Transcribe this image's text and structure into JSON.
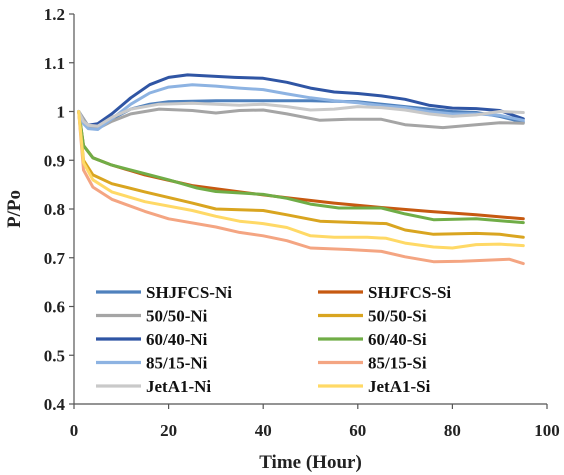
{
  "chart_data": {
    "type": "line",
    "title": "",
    "xlabel": "Time (Hour)",
    "ylabel": "P/Po",
    "xlim": [
      0,
      100
    ],
    "ylim": [
      0.4,
      1.2
    ],
    "xticks": [
      "0",
      "20",
      "40",
      "60",
      "80",
      "100"
    ],
    "yticks": [
      "0.4",
      "0.5",
      "0.6",
      "0.7",
      "0.8",
      "0.9",
      "1",
      "1.1",
      "1.2"
    ],
    "xtick_values": [
      0,
      20,
      40,
      60,
      80,
      100
    ],
    "ytick_values": [
      0.4,
      0.5,
      0.6,
      0.7,
      0.8,
      0.9,
      1.0,
      1.1,
      1.2
    ],
    "grid": false,
    "legend_position": "lower-left, inside plot, two columns",
    "series": [
      {
        "name": "SHJFCS-Ni",
        "color": "#4f81bd",
        "points": [
          [
            1,
            1.0
          ],
          [
            3,
            0.97
          ],
          [
            5,
            0.965
          ],
          [
            8,
            0.985
          ],
          [
            12,
            1.005
          ],
          [
            16,
            1.015
          ],
          [
            20,
            1.02
          ],
          [
            30,
            1.022
          ],
          [
            40,
            1.022
          ],
          [
            50,
            1.022
          ],
          [
            60,
            1.02
          ],
          [
            70,
            1.01
          ],
          [
            80,
            1.0
          ],
          [
            85,
            0.998
          ],
          [
            90,
            0.99
          ],
          [
            95,
            0.978
          ]
        ]
      },
      {
        "name": "SHJFCS-Si",
        "color": "#c65911",
        "points": [
          [
            1,
            1.0
          ],
          [
            2,
            0.93
          ],
          [
            4,
            0.905
          ],
          [
            8,
            0.89
          ],
          [
            15,
            0.87
          ],
          [
            25,
            0.848
          ],
          [
            35,
            0.835
          ],
          [
            45,
            0.823
          ],
          [
            55,
            0.812
          ],
          [
            65,
            0.803
          ],
          [
            75,
            0.795
          ],
          [
            85,
            0.788
          ],
          [
            95,
            0.78
          ]
        ]
      },
      {
        "name": "50/50-Ni",
        "color": "#a5a5a5",
        "points": [
          [
            1,
            1.0
          ],
          [
            3,
            0.97
          ],
          [
            5,
            0.965
          ],
          [
            8,
            0.98
          ],
          [
            12,
            0.995
          ],
          [
            18,
            1.005
          ],
          [
            25,
            1.002
          ],
          [
            30,
            0.997
          ],
          [
            35,
            1.002
          ],
          [
            40,
            1.003
          ],
          [
            45,
            0.995
          ],
          [
            52,
            0.982
          ],
          [
            58,
            0.984
          ],
          [
            65,
            0.984
          ],
          [
            70,
            0.973
          ],
          [
            78,
            0.967
          ],
          [
            85,
            0.973
          ],
          [
            90,
            0.977
          ],
          [
            95,
            0.976
          ]
        ]
      },
      {
        "name": "50/50-Si",
        "color": "#d9a520",
        "points": [
          [
            1,
            1.0
          ],
          [
            2,
            0.9
          ],
          [
            4,
            0.87
          ],
          [
            8,
            0.852
          ],
          [
            15,
            0.835
          ],
          [
            25,
            0.812
          ],
          [
            30,
            0.8
          ],
          [
            40,
            0.797
          ],
          [
            45,
            0.788
          ],
          [
            52,
            0.775
          ],
          [
            60,
            0.772
          ],
          [
            66,
            0.77
          ],
          [
            70,
            0.757
          ],
          [
            76,
            0.748
          ],
          [
            85,
            0.75
          ],
          [
            90,
            0.748
          ],
          [
            95,
            0.742
          ]
        ]
      },
      {
        "name": "60/40-Ni",
        "color": "#2f55a4",
        "points": [
          [
            1,
            1.0
          ],
          [
            2,
            0.98
          ],
          [
            3,
            0.972
          ],
          [
            5,
            0.975
          ],
          [
            8,
            0.995
          ],
          [
            12,
            1.028
          ],
          [
            16,
            1.055
          ],
          [
            20,
            1.07
          ],
          [
            24,
            1.075
          ],
          [
            28,
            1.073
          ],
          [
            34,
            1.07
          ],
          [
            40,
            1.068
          ],
          [
            45,
            1.06
          ],
          [
            50,
            1.048
          ],
          [
            55,
            1.04
          ],
          [
            60,
            1.037
          ],
          [
            65,
            1.032
          ],
          [
            70,
            1.025
          ],
          [
            75,
            1.013
          ],
          [
            80,
            1.007
          ],
          [
            85,
            1.006
          ],
          [
            90,
            1.002
          ],
          [
            95,
            0.985
          ]
        ]
      },
      {
        "name": "60/40-Si",
        "color": "#70ad47",
        "points": [
          [
            1,
            1.0
          ],
          [
            2,
            0.93
          ],
          [
            4,
            0.905
          ],
          [
            8,
            0.89
          ],
          [
            14,
            0.875
          ],
          [
            20,
            0.86
          ],
          [
            26,
            0.843
          ],
          [
            30,
            0.836
          ],
          [
            40,
            0.83
          ],
          [
            45,
            0.822
          ],
          [
            50,
            0.81
          ],
          [
            56,
            0.802
          ],
          [
            65,
            0.802
          ],
          [
            70,
            0.79
          ],
          [
            76,
            0.778
          ],
          [
            85,
            0.78
          ],
          [
            95,
            0.772
          ]
        ]
      },
      {
        "name": "85/15-Ni",
        "color": "#8db3e2",
        "points": [
          [
            1,
            1.0
          ],
          [
            2,
            0.975
          ],
          [
            3,
            0.965
          ],
          [
            5,
            0.963
          ],
          [
            8,
            0.985
          ],
          [
            12,
            1.015
          ],
          [
            16,
            1.038
          ],
          [
            20,
            1.05
          ],
          [
            25,
            1.055
          ],
          [
            30,
            1.052
          ],
          [
            35,
            1.048
          ],
          [
            40,
            1.045
          ],
          [
            45,
            1.036
          ],
          [
            50,
            1.028
          ],
          [
            55,
            1.022
          ],
          [
            60,
            1.018
          ],
          [
            65,
            1.012
          ],
          [
            70,
            1.008
          ],
          [
            75,
            1.0
          ],
          [
            80,
            0.995
          ],
          [
            85,
            0.995
          ],
          [
            90,
            0.992
          ],
          [
            95,
            0.982
          ]
        ]
      },
      {
        "name": "85/15-Si",
        "color": "#f4a582",
        "points": [
          [
            1,
            1.0
          ],
          [
            2,
            0.88
          ],
          [
            4,
            0.845
          ],
          [
            8,
            0.82
          ],
          [
            15,
            0.795
          ],
          [
            20,
            0.78
          ],
          [
            30,
            0.763
          ],
          [
            35,
            0.752
          ],
          [
            40,
            0.745
          ],
          [
            45,
            0.735
          ],
          [
            50,
            0.72
          ],
          [
            58,
            0.717
          ],
          [
            65,
            0.713
          ],
          [
            70,
            0.702
          ],
          [
            76,
            0.692
          ],
          [
            82,
            0.693
          ],
          [
            87,
            0.695
          ],
          [
            92,
            0.697
          ],
          [
            95,
            0.688
          ]
        ]
      },
      {
        "name": "JetA1-Ni",
        "color": "#c9c9c9",
        "points": [
          [
            1,
            1.0
          ],
          [
            2,
            0.98
          ],
          [
            3,
            0.972
          ],
          [
            5,
            0.97
          ],
          [
            8,
            0.988
          ],
          [
            12,
            1.005
          ],
          [
            18,
            1.015
          ],
          [
            25,
            1.017
          ],
          [
            30,
            1.015
          ],
          [
            35,
            1.013
          ],
          [
            40,
            1.015
          ],
          [
            45,
            1.01
          ],
          [
            50,
            1.003
          ],
          [
            55,
            1.005
          ],
          [
            60,
            1.01
          ],
          [
            65,
            1.008
          ],
          [
            70,
            1.003
          ],
          [
            75,
            0.995
          ],
          [
            80,
            0.99
          ],
          [
            85,
            0.993
          ],
          [
            90,
            1.0
          ],
          [
            95,
            0.998
          ]
        ]
      },
      {
        "name": "JetA1-Si",
        "color": "#ffd966",
        "points": [
          [
            1,
            1.0
          ],
          [
            2,
            0.895
          ],
          [
            4,
            0.86
          ],
          [
            8,
            0.835
          ],
          [
            15,
            0.815
          ],
          [
            25,
            0.797
          ],
          [
            30,
            0.785
          ],
          [
            35,
            0.775
          ],
          [
            40,
            0.77
          ],
          [
            45,
            0.762
          ],
          [
            50,
            0.745
          ],
          [
            55,
            0.742
          ],
          [
            62,
            0.742
          ],
          [
            66,
            0.74
          ],
          [
            70,
            0.73
          ],
          [
            76,
            0.722
          ],
          [
            80,
            0.72
          ],
          [
            85,
            0.727
          ],
          [
            90,
            0.728
          ],
          [
            95,
            0.725
          ]
        ]
      }
    ]
  }
}
